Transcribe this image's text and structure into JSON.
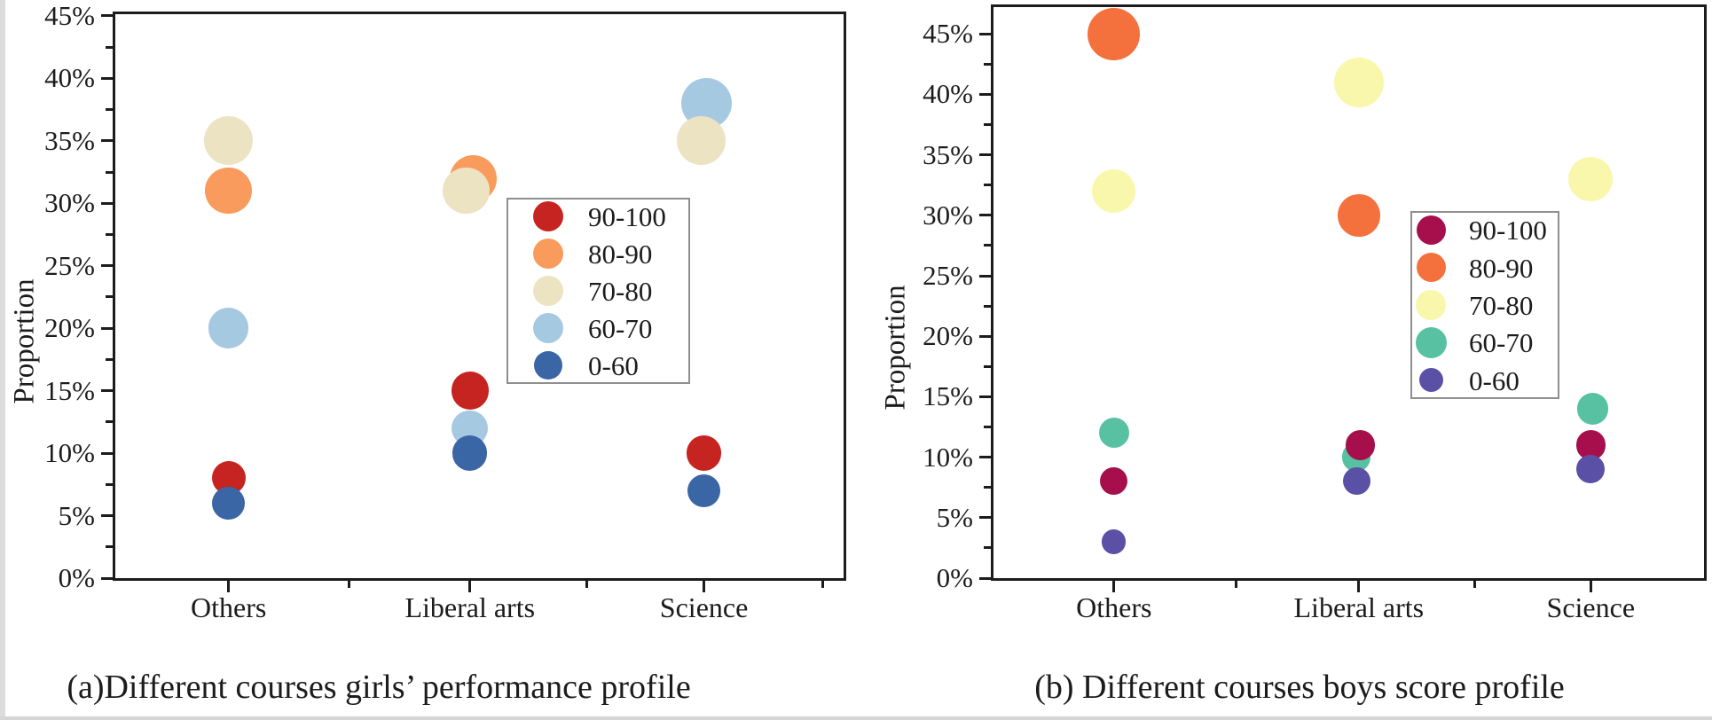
{
  "figure": {
    "background": "#ffffff",
    "text_color": "#1c1c1c"
  },
  "chart_data": [
    {
      "type": "scatter",
      "panel": "a",
      "caption": "(a)Different courses girls’ performance profile",
      "ylabel": "Proportion",
      "categories": [
        "Others",
        "Liberal arts",
        "Science"
      ],
      "y_tick_labels": [
        "0%",
        "5%",
        "10%",
        "15%",
        "20%",
        "25%",
        "30%",
        "35%",
        "40%",
        "45%"
      ],
      "ylim": [
        0,
        45
      ],
      "grid": false,
      "legend_position": "inside-right",
      "legend": [
        {
          "label": "90-100",
          "color": "#c62420"
        },
        {
          "label": "80-90",
          "color": "#f89b5c"
        },
        {
          "label": "70-80",
          "color": "#ebe3c1"
        },
        {
          "label": "60-70",
          "color": "#a6c9e2"
        },
        {
          "label": "0-60",
          "color": "#3a66a5"
        }
      ],
      "series": [
        {
          "name": "90-100",
          "values": [
            8,
            15,
            10
          ]
        },
        {
          "name": "80-90",
          "values": [
            31,
            32,
            null
          ]
        },
        {
          "name": "70-80",
          "values": [
            35,
            31,
            35
          ]
        },
        {
          "name": "60-70",
          "values": [
            20,
            12,
            38
          ]
        },
        {
          "name": "0-60",
          "values": [
            6,
            10,
            7
          ]
        }
      ],
      "points": [
        {
          "category": "Others",
          "range": "70-80",
          "value": 35,
          "dx": 0
        },
        {
          "category": "Others",
          "range": "80-90",
          "value": 31,
          "dx": 0
        },
        {
          "category": "Others",
          "range": "60-70",
          "value": 20,
          "dx": 0
        },
        {
          "category": "Others",
          "range": "90-100",
          "value": 8,
          "dx": 0
        },
        {
          "category": "Others",
          "range": "0-60",
          "value": 6,
          "dx": 0
        },
        {
          "category": "Liberal arts",
          "range": "80-90",
          "value": 32,
          "dx": 4
        },
        {
          "category": "Liberal arts",
          "range": "70-80",
          "value": 31,
          "dx": -4
        },
        {
          "category": "Liberal arts",
          "range": "90-100",
          "value": 15,
          "dx": 0
        },
        {
          "category": "Liberal arts",
          "range": "60-70",
          "value": 12,
          "dx": 0
        },
        {
          "category": "Liberal arts",
          "range": "0-60",
          "value": 10,
          "dx": 0
        },
        {
          "category": "Science",
          "range": "60-70",
          "value": 38,
          "dx": 3
        },
        {
          "category": "Science",
          "range": "70-80",
          "value": 35,
          "dx": -3
        },
        {
          "category": "Science",
          "range": "90-100",
          "value": 10,
          "dx": 0
        },
        {
          "category": "Science",
          "range": "0-60",
          "value": 7,
          "dx": 0
        }
      ]
    },
    {
      "type": "scatter",
      "panel": "b",
      "caption": "(b) Different courses boys score profile",
      "ylabel": "Proportion",
      "categories": [
        "Others",
        "Liberal arts",
        "Science"
      ],
      "y_tick_labels": [
        "0%",
        "5%",
        "10%",
        "15%",
        "20%",
        "25%",
        "30%",
        "35%",
        "40%",
        "45%"
      ],
      "ylim": [
        0,
        45
      ],
      "grid": false,
      "legend_position": "inside-right",
      "legend": [
        {
          "label": "90-100",
          "color": "#a60f4b"
        },
        {
          "label": "80-90",
          "color": "#f4713d"
        },
        {
          "label": "70-80",
          "color": "#f9f7ab"
        },
        {
          "label": "60-70",
          "color": "#58c1a2"
        },
        {
          "label": "0-60",
          "color": "#5a50a5"
        }
      ],
      "series": [
        {
          "name": "90-100",
          "values": [
            8,
            11,
            11
          ]
        },
        {
          "name": "80-90",
          "values": [
            45,
            30,
            null
          ]
        },
        {
          "name": "70-80",
          "values": [
            32,
            41,
            33
          ]
        },
        {
          "name": "60-70",
          "values": [
            12,
            10,
            14
          ]
        },
        {
          "name": "0-60",
          "values": [
            3,
            8,
            9
          ]
        }
      ],
      "points": [
        {
          "category": "Others",
          "range": "80-90",
          "value": 45,
          "dx": 0
        },
        {
          "category": "Others",
          "range": "70-80",
          "value": 32,
          "dx": 0
        },
        {
          "category": "Others",
          "range": "60-70",
          "value": 12,
          "dx": 0
        },
        {
          "category": "Others",
          "range": "90-100",
          "value": 8,
          "dx": 0
        },
        {
          "category": "Others",
          "range": "0-60",
          "value": 3,
          "dx": 0
        },
        {
          "category": "Liberal arts",
          "range": "70-80",
          "value": 41,
          "dx": 0
        },
        {
          "category": "Liberal arts",
          "range": "80-90",
          "value": 30,
          "dx": 0
        },
        {
          "category": "Liberal arts",
          "range": "60-70",
          "value": 10,
          "dx": -3
        },
        {
          "category": "Liberal arts",
          "range": "90-100",
          "value": 11,
          "dx": 2
        },
        {
          "category": "Liberal arts",
          "range": "0-60",
          "value": 8,
          "dx": -2
        },
        {
          "category": "Science",
          "range": "70-80",
          "value": 33,
          "dx": 0
        },
        {
          "category": "Science",
          "range": "60-70",
          "value": 14,
          "dx": 2
        },
        {
          "category": "Science",
          "range": "90-100",
          "value": 11,
          "dx": 0
        },
        {
          "category": "Science",
          "range": "0-60",
          "value": 9,
          "dx": 0
        }
      ]
    }
  ]
}
